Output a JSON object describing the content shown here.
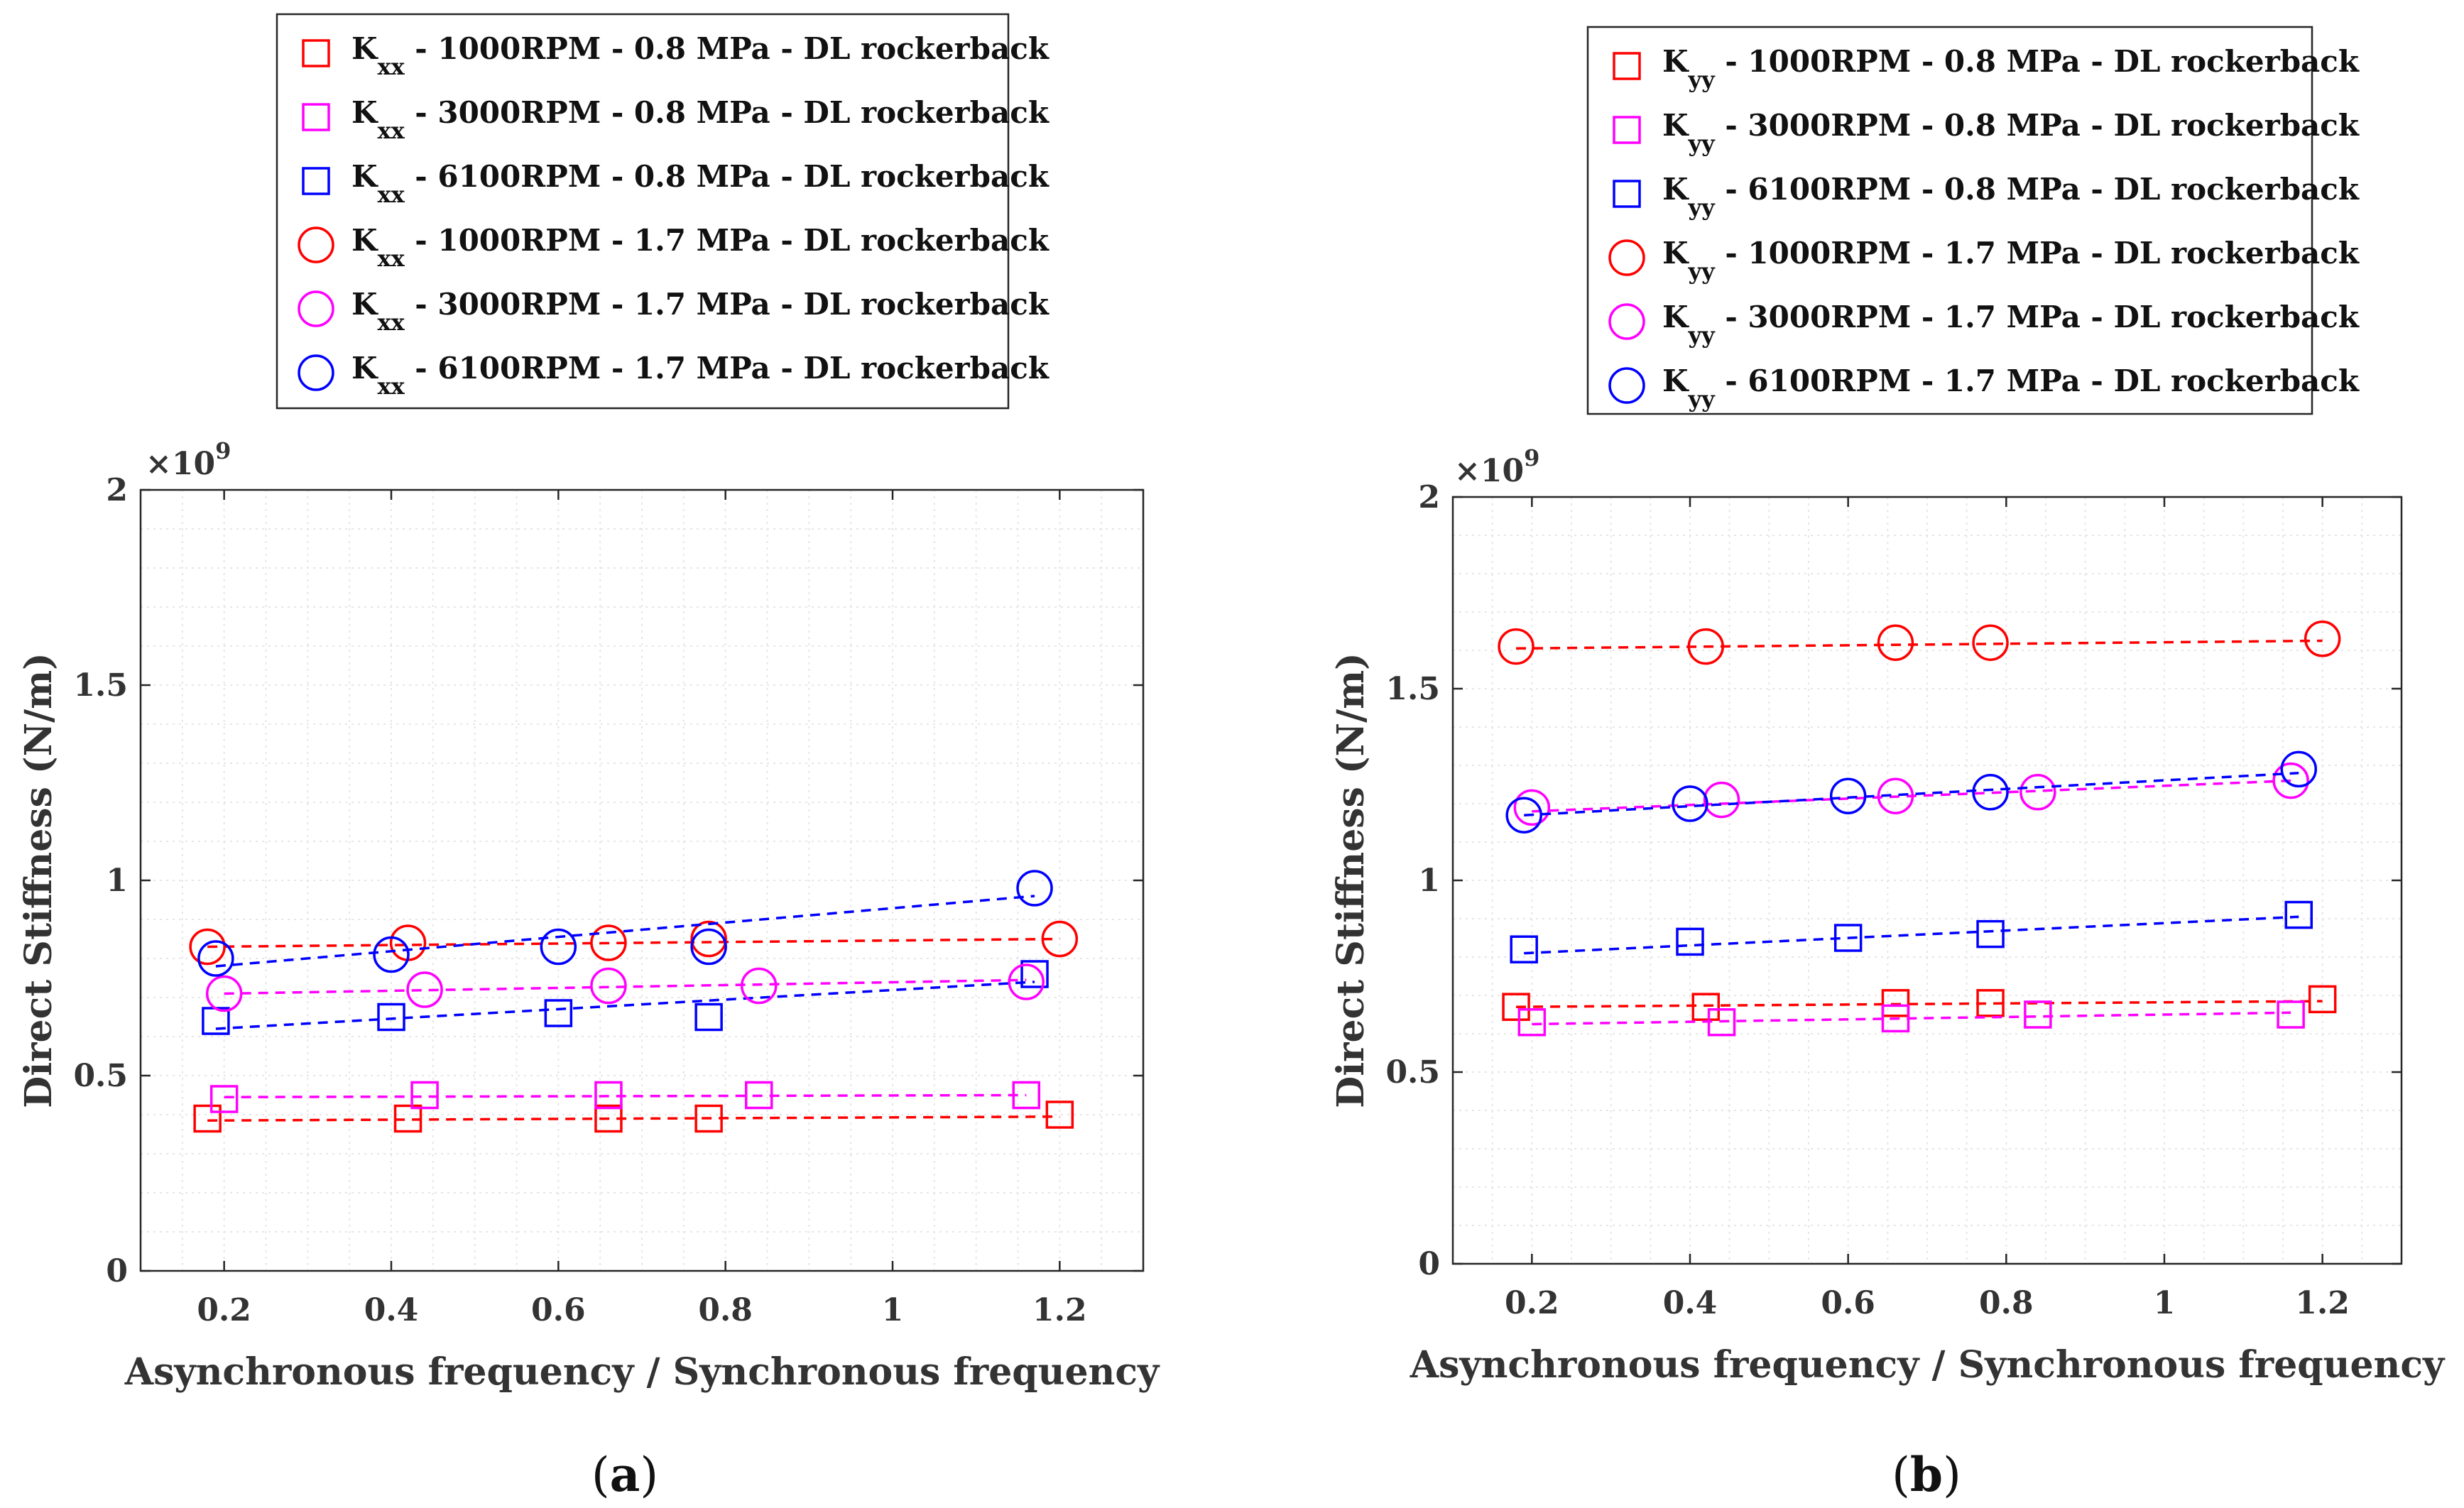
{
  "colors": {
    "red": "#ff0000",
    "magenta": "#ff00ff",
    "blue": "#0000ff"
  },
  "chart_data": [
    {
      "type": "scatter",
      "panel_caption": "(a)",
      "caption_letter": "a",
      "xlabel": "Asynchronous frequency / Synchronous frequency",
      "ylabel": "Direct Stiffness (N/m)",
      "y_multiplier": "×10",
      "y_exponent": "9",
      "xlim": [
        0.1,
        1.3
      ],
      "ylim": [
        0,
        2
      ],
      "x_ticks": [
        "0.2",
        "0.4",
        "0.6",
        "0.8",
        "1",
        "1.2"
      ],
      "y_ticks": [
        "0",
        "0.5",
        "1",
        "1.5",
        "2"
      ],
      "grid": true,
      "legend_position": "top",
      "series": [
        {
          "legend_main": "K",
          "legend_sub": "xx",
          "legend_rest": " - 1000RPM - 0.8 MPa - DL rockerback",
          "marker": "square",
          "color": "red",
          "x": [
            0.18,
            0.42,
            0.66,
            0.78,
            1.2
          ],
          "y": [
            0.39,
            0.39,
            0.39,
            0.39,
            0.4
          ],
          "fit": [
            [
              0.18,
              0.385
            ],
            [
              1.2,
              0.395
            ]
          ]
        },
        {
          "legend_main": "K",
          "legend_sub": "xx",
          "legend_rest": " - 3000RPM - 0.8 MPa - DL rockerback",
          "marker": "square",
          "color": "magenta",
          "x": [
            0.2,
            0.44,
            0.66,
            0.84,
            1.16
          ],
          "y": [
            0.44,
            0.45,
            0.45,
            0.45,
            0.45
          ],
          "fit": [
            [
              0.2,
              0.445
            ],
            [
              1.16,
              0.45
            ]
          ]
        },
        {
          "legend_main": "K",
          "legend_sub": "xx",
          "legend_rest": " - 6100RPM - 0.8 MPa - DL rockerback",
          "marker": "square",
          "color": "blue",
          "x": [
            0.19,
            0.4,
            0.6,
            0.78,
            1.17
          ],
          "y": [
            0.64,
            0.65,
            0.66,
            0.65,
            0.76
          ],
          "fit": [
            [
              0.19,
              0.62
            ],
            [
              1.17,
              0.74
            ]
          ]
        },
        {
          "legend_main": "K",
          "legend_sub": "xx",
          "legend_rest": " - 1000RPM - 1.7 MPa - DL rockerback",
          "marker": "circle",
          "color": "red",
          "x": [
            0.18,
            0.42,
            0.66,
            0.78,
            1.2
          ],
          "y": [
            0.83,
            0.84,
            0.84,
            0.85,
            0.85
          ],
          "fit": [
            [
              0.18,
              0.83
            ],
            [
              1.2,
              0.85
            ]
          ]
        },
        {
          "legend_main": "K",
          "legend_sub": "xx",
          "legend_rest": " - 3000RPM - 1.7 MPa - DL rockerback",
          "marker": "circle",
          "color": "magenta",
          "x": [
            0.2,
            0.44,
            0.66,
            0.84,
            1.16
          ],
          "y": [
            0.71,
            0.72,
            0.73,
            0.73,
            0.74
          ],
          "fit": [
            [
              0.2,
              0.71
            ],
            [
              1.16,
              0.745
            ]
          ]
        },
        {
          "legend_main": "K",
          "legend_sub": "xx",
          "legend_rest": " - 6100RPM - 1.7 MPa - DL rockerback",
          "marker": "circle",
          "color": "blue",
          "x": [
            0.19,
            0.4,
            0.6,
            0.78,
            1.17
          ],
          "y": [
            0.8,
            0.81,
            0.83,
            0.83,
            0.98
          ],
          "fit": [
            [
              0.19,
              0.78
            ],
            [
              1.17,
              0.96
            ]
          ]
        }
      ]
    },
    {
      "type": "scatter",
      "panel_caption": "(b)",
      "caption_letter": "b",
      "xlabel": "Asynchronous frequency / Synchronous frequency",
      "ylabel": "Direct Stiffness (N/m)",
      "y_multiplier": "×10",
      "y_exponent": "9",
      "xlim": [
        0.1,
        1.3
      ],
      "ylim": [
        0,
        2
      ],
      "x_ticks": [
        "0.2",
        "0.4",
        "0.6",
        "0.8",
        "1",
        "1.2"
      ],
      "y_ticks": [
        "0",
        "0.5",
        "1",
        "1.5",
        "2"
      ],
      "grid": true,
      "legend_position": "top",
      "series": [
        {
          "legend_main": "K",
          "legend_sub": "yy",
          "legend_rest": " - 1000RPM - 0.8 MPa - DL rockerback",
          "marker": "square",
          "color": "red",
          "x": [
            0.18,
            0.42,
            0.66,
            0.78,
            1.2
          ],
          "y": [
            0.67,
            0.67,
            0.68,
            0.68,
            0.69
          ],
          "fit": [
            [
              0.18,
              0.67
            ],
            [
              1.2,
              0.685
            ]
          ]
        },
        {
          "legend_main": "K",
          "legend_sub": "yy",
          "legend_rest": " - 3000RPM - 0.8 MPa - DL rockerback",
          "marker": "square",
          "color": "magenta",
          "x": [
            0.2,
            0.44,
            0.66,
            0.84,
            1.16
          ],
          "y": [
            0.63,
            0.63,
            0.64,
            0.65,
            0.65
          ],
          "fit": [
            [
              0.2,
              0.625
            ],
            [
              1.16,
              0.655
            ]
          ]
        },
        {
          "legend_main": "K",
          "legend_sub": "yy",
          "legend_rest": " - 6100RPM - 0.8 MPa - DL rockerback",
          "marker": "square",
          "color": "blue",
          "x": [
            0.19,
            0.4,
            0.6,
            0.78,
            1.17
          ],
          "y": [
            0.82,
            0.84,
            0.85,
            0.86,
            0.91
          ],
          "fit": [
            [
              0.19,
              0.81
            ],
            [
              1.17,
              0.905
            ]
          ]
        },
        {
          "legend_main": "K",
          "legend_sub": "yy",
          "legend_rest": " - 1000RPM - 1.7 MPa - DL rockerback",
          "marker": "circle",
          "color": "red",
          "x": [
            0.18,
            0.42,
            0.66,
            0.78,
            1.2
          ],
          "y": [
            1.61,
            1.61,
            1.62,
            1.62,
            1.63
          ],
          "fit": [
            [
              0.18,
              1.605
            ],
            [
              1.2,
              1.625
            ]
          ]
        },
        {
          "legend_main": "K",
          "legend_sub": "yy",
          "legend_rest": " - 3000RPM - 1.7 MPa - DL rockerback",
          "marker": "circle",
          "color": "magenta",
          "x": [
            0.2,
            0.44,
            0.66,
            0.84,
            1.16
          ],
          "y": [
            1.19,
            1.21,
            1.22,
            1.23,
            1.26
          ],
          "fit": [
            [
              0.2,
              1.18
            ],
            [
              1.16,
              1.26
            ]
          ]
        },
        {
          "legend_main": "K",
          "legend_sub": "yy",
          "legend_rest": " - 6100RPM - 1.7 MPa - DL rockerback",
          "marker": "circle",
          "color": "blue",
          "x": [
            0.19,
            0.4,
            0.6,
            0.78,
            1.17
          ],
          "y": [
            1.17,
            1.2,
            1.22,
            1.23,
            1.29
          ],
          "fit": [
            [
              0.19,
              1.17
            ],
            [
              1.17,
              1.28
            ]
          ]
        }
      ]
    }
  ]
}
